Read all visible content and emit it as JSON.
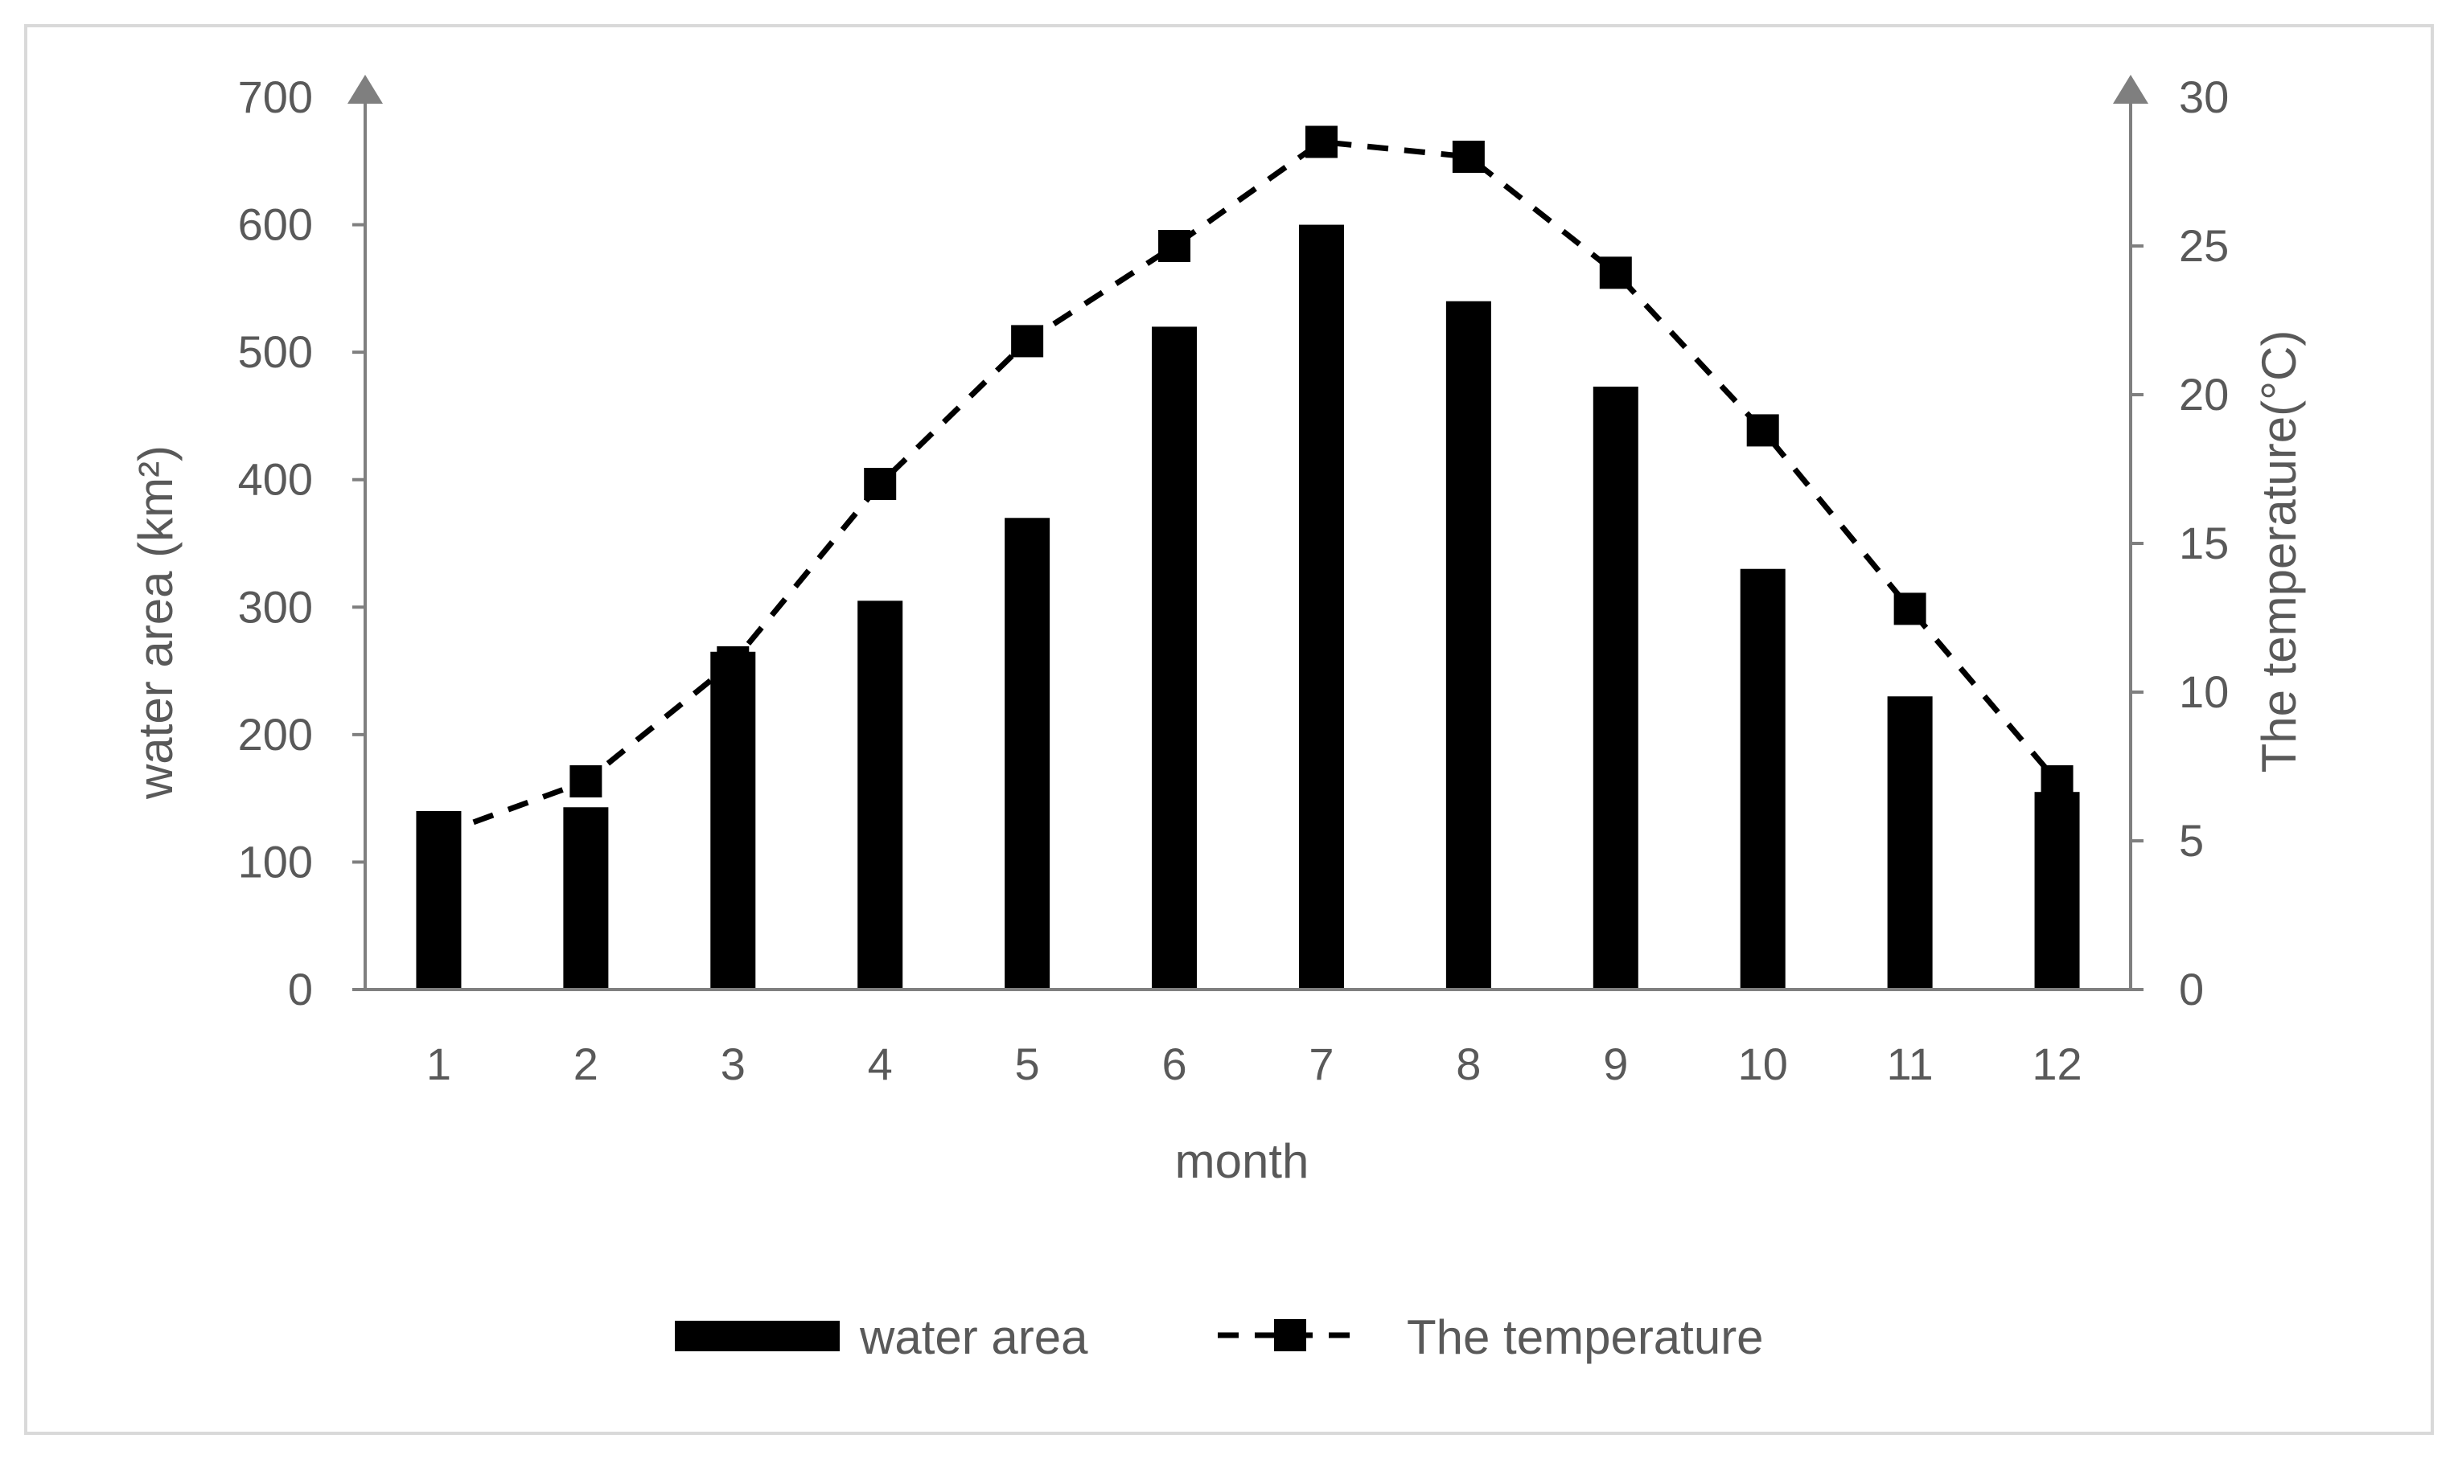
{
  "chart_data": {
    "type": "bar",
    "categories": [
      "1",
      "2",
      "3",
      "4",
      "5",
      "6",
      "7",
      "8",
      "9",
      "10",
      "11",
      "12"
    ],
    "series": [
      {
        "name": "water area",
        "type": "bar",
        "axis": "left",
        "values": [
          140,
          143,
          265,
          305,
          370,
          520,
          600,
          540,
          473,
          330,
          230,
          155
        ]
      },
      {
        "name": "The temperature",
        "type": "line",
        "axis": "right",
        "style": "dashed",
        "marker": "square",
        "values": [
          5.2,
          7.0,
          11.0,
          17.0,
          21.8,
          25.0,
          28.5,
          28.0,
          24.1,
          18.8,
          12.8,
          7.0
        ]
      }
    ],
    "xlabel": "month",
    "ylabel": "water area (km²)",
    "y2label": "The temperature(°C)",
    "ylim": [
      0,
      700
    ],
    "y2lim": [
      0,
      30
    ],
    "yticks": [
      "0",
      "100",
      "200",
      "300",
      "400",
      "500",
      "600",
      "700"
    ],
    "y2ticks": [
      "0",
      "5",
      "10",
      "15",
      "20",
      "25",
      "30"
    ],
    "grid": false,
    "legend_position": "bottom",
    "colors": {
      "bar": "#000000",
      "line": "#000000",
      "axis": "#7f7f7f",
      "text": "#595959",
      "frame": "#d9d9d9"
    }
  }
}
